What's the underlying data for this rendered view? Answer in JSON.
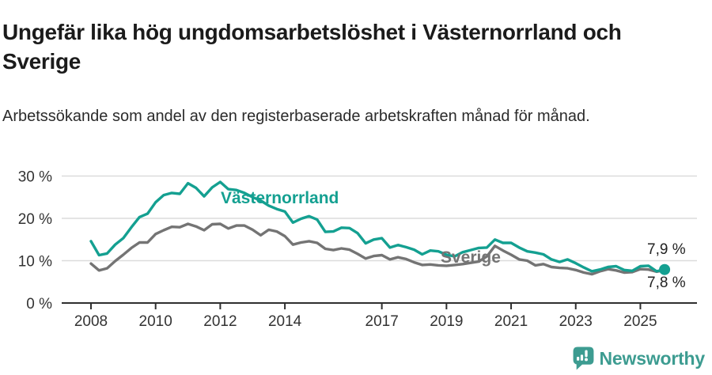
{
  "title": "Ungefär lika hög ungdomsarbetslöshet i Västernorrland och Sverige",
  "subtitle": "Arbetssökande som andel av den registerbaserade arbetskraften månad för månad.",
  "footer": {
    "brand": "Newsworthy",
    "logo_icon": "newsworthy-speech-bubble-barchart-icon"
  },
  "colors": {
    "vasternorrland": "#14A091",
    "sverige": "#747474",
    "grid": "#dcdcdc",
    "axis": "#2f2f2f",
    "tick_text": "#333333",
    "title_text": "#1b1b1b",
    "end_label_text": "#222222",
    "brand_teal": "#3D9C91",
    "background": "#ffffff"
  },
  "chart_data": {
    "type": "line",
    "title": "Ungefär lika hög ungdomsarbetslöshet i Västernorrland och Sverige",
    "subtitle": "Arbetssökande som andel av den registerbaserade arbetskraften månad för månad.",
    "xlabel": "",
    "ylabel": "",
    "grid": true,
    "legend_position": "inline-labels",
    "ylim": [
      0,
      32
    ],
    "xlim": [
      2008,
      2025.85
    ],
    "y_ticks": [
      {
        "value": 0,
        "label": "0 %"
      },
      {
        "value": 10,
        "label": "10 %"
      },
      {
        "value": 20,
        "label": "20 %"
      },
      {
        "value": 30,
        "label": "30 %"
      }
    ],
    "x_ticks": [
      {
        "value": 2008,
        "label": "2008"
      },
      {
        "value": 2010,
        "label": "2010"
      },
      {
        "value": 2012,
        "label": "2012"
      },
      {
        "value": 2014,
        "label": "2014"
      },
      {
        "value": 2017,
        "label": "2017"
      },
      {
        "value": 2019,
        "label": "2019"
      },
      {
        "value": 2021,
        "label": "2021"
      },
      {
        "value": 2023,
        "label": "2023"
      },
      {
        "value": 2025,
        "label": "2025"
      }
    ],
    "x_unit": "year",
    "x": [
      2008.0,
      2008.25,
      2008.5,
      2008.75,
      2009.0,
      2009.25,
      2009.5,
      2009.75,
      2010.0,
      2010.25,
      2010.5,
      2010.75,
      2011.0,
      2011.25,
      2011.5,
      2011.75,
      2012.0,
      2012.25,
      2012.5,
      2012.75,
      2013.0,
      2013.25,
      2013.5,
      2013.75,
      2014.0,
      2014.25,
      2014.5,
      2014.75,
      2015.0,
      2015.25,
      2015.5,
      2015.75,
      2016.0,
      2016.25,
      2016.5,
      2016.75,
      2017.0,
      2017.25,
      2017.5,
      2017.75,
      2018.0,
      2018.25,
      2018.5,
      2018.75,
      2019.0,
      2019.25,
      2019.5,
      2019.75,
      2020.0,
      2020.25,
      2020.5,
      2020.75,
      2021.0,
      2021.25,
      2021.5,
      2021.75,
      2022.0,
      2022.25,
      2022.5,
      2022.75,
      2023.0,
      2023.25,
      2023.5,
      2023.75,
      2024.0,
      2024.25,
      2024.5,
      2024.75,
      2025.0,
      2025.25,
      2025.5,
      2025.75
    ],
    "series": [
      {
        "name": "Västernorrland",
        "color_key": "vasternorrland",
        "end_label": "7,9 %",
        "end_value": 7.9,
        "end_marker": true,
        "values": [
          14.6,
          11.3,
          11.7,
          13.8,
          15.3,
          17.9,
          20.3,
          21.1,
          23.8,
          25.5,
          26.0,
          25.8,
          28.3,
          27.2,
          25.2,
          27.3,
          28.6,
          26.9,
          26.7,
          26.0,
          25.0,
          24.2,
          23.0,
          22.2,
          21.6,
          19.0,
          19.9,
          20.5,
          19.7,
          16.8,
          16.9,
          17.8,
          17.7,
          16.5,
          14.1,
          15.0,
          15.3,
          13.1,
          13.7,
          13.2,
          12.6,
          11.5,
          12.4,
          12.2,
          11.4,
          11.0,
          12.0,
          12.5,
          13.0,
          13.1,
          15.0,
          14.2,
          14.2,
          13.1,
          12.2,
          11.9,
          11.5,
          10.3,
          9.7,
          10.3,
          9.4,
          8.4,
          7.5,
          7.9,
          8.5,
          8.7,
          7.8,
          7.6,
          8.7,
          8.8,
          7.5,
          7.9
        ]
      },
      {
        "name": "Sverige",
        "color_key": "sverige",
        "end_label": "7,8 %",
        "end_value": 7.8,
        "end_marker": false,
        "values": [
          9.3,
          7.7,
          8.2,
          9.9,
          11.4,
          13.0,
          14.3,
          14.3,
          16.3,
          17.2,
          18.0,
          17.9,
          18.7,
          18.1,
          17.2,
          18.6,
          18.7,
          17.6,
          18.3,
          18.3,
          17.3,
          16.0,
          17.3,
          16.9,
          15.8,
          13.8,
          14.3,
          14.6,
          14.2,
          12.8,
          12.5,
          12.9,
          12.6,
          11.6,
          10.5,
          11.1,
          11.3,
          10.3,
          10.8,
          10.4,
          9.6,
          9.0,
          9.1,
          8.9,
          8.8,
          9.0,
          9.2,
          9.5,
          9.8,
          11.0,
          13.5,
          12.4,
          11.4,
          10.3,
          10.0,
          8.9,
          9.2,
          8.5,
          8.3,
          8.2,
          7.8,
          7.2,
          6.8,
          7.5,
          8.0,
          7.7,
          7.2,
          7.3,
          8.0,
          7.9,
          7.4,
          7.8
        ]
      }
    ]
  }
}
